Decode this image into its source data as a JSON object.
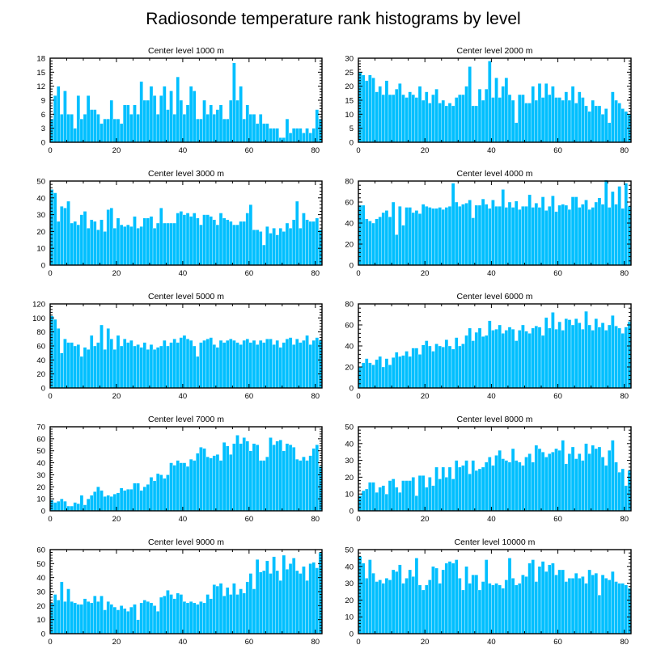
{
  "chart_data": {
    "title": "Radiosonde temperature rank histograms by level",
    "type": "bar",
    "bar_color": "#00BFFF",
    "panels": [
      {
        "title": "Center level 1000 m",
        "xlim": [
          0,
          82
        ],
        "ylim": [
          0,
          18
        ],
        "xticks": [
          0,
          20,
          40,
          60,
          80
        ],
        "yticks": [
          0,
          3,
          6,
          9,
          12,
          15,
          18
        ],
        "values": [
          5,
          10,
          12,
          6,
          11,
          6,
          6,
          3,
          10,
          5,
          6,
          10,
          7,
          7,
          6,
          4,
          5,
          5,
          9,
          5,
          5,
          4,
          8,
          8,
          6,
          8,
          6,
          13,
          9,
          9,
          12,
          10,
          6,
          10,
          12,
          7,
          11,
          6,
          14,
          9,
          6,
          8,
          12,
          11,
          5,
          5,
          9,
          6,
          8,
          6,
          7,
          8,
          5,
          5,
          9,
          17,
          9,
          12,
          5,
          8,
          6,
          6,
          4,
          6,
          4,
          4,
          3,
          3,
          3,
          1,
          1,
          5,
          2,
          3,
          3,
          3,
          2,
          3,
          2,
          3,
          7,
          5
        ]
      },
      {
        "title": "Center level 2000 m",
        "xlim": [
          0,
          82
        ],
        "ylim": [
          0,
          30
        ],
        "xticks": [
          0,
          20,
          40,
          60,
          80
        ],
        "yticks": [
          0,
          5,
          10,
          15,
          20,
          25,
          30
        ],
        "values": [
          25,
          24,
          22,
          24,
          23,
          18,
          20,
          17,
          22,
          17,
          17,
          19,
          21,
          17,
          16,
          18,
          17,
          16,
          20,
          15,
          18,
          14,
          17,
          19,
          14,
          15,
          13,
          14,
          13,
          16,
          17,
          17,
          20,
          27,
          13,
          13,
          19,
          15,
          19,
          29,
          16,
          23,
          16,
          20,
          23,
          17,
          15,
          7,
          17,
          17,
          14,
          14,
          20,
          15,
          21,
          16,
          21,
          17,
          20,
          16,
          16,
          15,
          18,
          15,
          20,
          14,
          18,
          16,
          13,
          11,
          15,
          13,
          13,
          10,
          12,
          7,
          18,
          15,
          14,
          12,
          11,
          10
        ]
      },
      {
        "title": "Center level 3000 m",
        "xlim": [
          0,
          82
        ],
        "ylim": [
          0,
          50
        ],
        "xticks": [
          0,
          20,
          40,
          60,
          80
        ],
        "yticks": [
          0,
          10,
          20,
          30,
          40,
          50
        ],
        "values": [
          45,
          43,
          26,
          35,
          34,
          38,
          25,
          26,
          24,
          30,
          32,
          22,
          27,
          26,
          21,
          27,
          20,
          33,
          34,
          22,
          28,
          24,
          23,
          24,
          23,
          29,
          22,
          23,
          28,
          28,
          29,
          22,
          25,
          34,
          25,
          25,
          25,
          25,
          31,
          32,
          30,
          31,
          29,
          31,
          28,
          24,
          30,
          30,
          29,
          27,
          24,
          31,
          28,
          27,
          26,
          24,
          24,
          26,
          26,
          31,
          36,
          21,
          21,
          20,
          12,
          23,
          19,
          22,
          18,
          22,
          20,
          25,
          22,
          27,
          38,
          22,
          31,
          27,
          26,
          26,
          28,
          21
        ]
      },
      {
        "title": "Center level 4000 m",
        "xlim": [
          0,
          82
        ],
        "ylim": [
          0,
          80
        ],
        "xticks": [
          0,
          20,
          40,
          60,
          80
        ],
        "yticks": [
          0,
          20,
          40,
          60,
          80
        ],
        "values": [
          57,
          57,
          44,
          42,
          40,
          44,
          46,
          50,
          52,
          46,
          60,
          29,
          56,
          38,
          55,
          55,
          50,
          52,
          49,
          58,
          56,
          55,
          54,
          54,
          55,
          53,
          55,
          56,
          78,
          60,
          56,
          58,
          59,
          62,
          45,
          57,
          57,
          63,
          58,
          54,
          62,
          56,
          56,
          72,
          55,
          60,
          55,
          61,
          53,
          56,
          56,
          67,
          55,
          59,
          55,
          65,
          52,
          56,
          66,
          51,
          57,
          58,
          57,
          53,
          65,
          65,
          55,
          58,
          62,
          53,
          55,
          60,
          64,
          58,
          81,
          55,
          70,
          58,
          75,
          54,
          78,
          56
        ]
      },
      {
        "title": "Center level 5000 m",
        "xlim": [
          0,
          82
        ],
        "ylim": [
          0,
          120
        ],
        "xticks": [
          0,
          20,
          40,
          60,
          80
        ],
        "yticks": [
          0,
          20,
          40,
          60,
          80,
          100,
          120
        ],
        "values": [
          103,
          98,
          85,
          50,
          70,
          65,
          65,
          60,
          62,
          45,
          58,
          55,
          75,
          60,
          65,
          90,
          55,
          85,
          70,
          55,
          75,
          60,
          70,
          65,
          68,
          60,
          62,
          58,
          65,
          55,
          62,
          55,
          58,
          60,
          68,
          60,
          65,
          70,
          65,
          72,
          75,
          70,
          68,
          60,
          45,
          65,
          68,
          70,
          72,
          62,
          58,
          68,
          65,
          68,
          70,
          68,
          65,
          62,
          68,
          70,
          65,
          68,
          62,
          68,
          65,
          70,
          70,
          62,
          68,
          58,
          65,
          70,
          72,
          62,
          70,
          65,
          68,
          75,
          62,
          68,
          72,
          68
        ]
      },
      {
        "title": "Center level 6000 m",
        "xlim": [
          0,
          82
        ],
        "ylim": [
          0,
          80
        ],
        "xticks": [
          0,
          20,
          40,
          60,
          80
        ],
        "yticks": [
          0,
          20,
          40,
          60,
          80
        ],
        "values": [
          20,
          24,
          28,
          24,
          22,
          27,
          30,
          20,
          28,
          22,
          29,
          34,
          30,
          31,
          35,
          30,
          38,
          38,
          32,
          41,
          45,
          40,
          35,
          42,
          40,
          39,
          46,
          40,
          37,
          48,
          40,
          42,
          50,
          57,
          45,
          53,
          57,
          49,
          50,
          64,
          55,
          56,
          60,
          52,
          55,
          58,
          56,
          45,
          55,
          60,
          54,
          52,
          57,
          59,
          58,
          50,
          67,
          57,
          72,
          56,
          63,
          55,
          66,
          65,
          60,
          66,
          62,
          56,
          73,
          60,
          55,
          66,
          58,
          62,
          55,
          60,
          69,
          59,
          57,
          52,
          58,
          63
        ]
      },
      {
        "title": "Center level 7000 m",
        "xlim": [
          0,
          82
        ],
        "ylim": [
          0,
          70
        ],
        "xticks": [
          0,
          20,
          40,
          60,
          80
        ],
        "yticks": [
          0,
          10,
          20,
          30,
          40,
          50,
          60,
          70
        ],
        "values": [
          9,
          7,
          8,
          10,
          8,
          4,
          4,
          7,
          6,
          13,
          5,
          10,
          13,
          16,
          20,
          17,
          12,
          13,
          12,
          14,
          15,
          19,
          17,
          18,
          18,
          23,
          23,
          17,
          20,
          22,
          28,
          25,
          31,
          30,
          27,
          30,
          40,
          38,
          42,
          40,
          40,
          37,
          43,
          42,
          48,
          53,
          52,
          45,
          44,
          46,
          47,
          42,
          57,
          54,
          47,
          56,
          63,
          56,
          61,
          58,
          50,
          56,
          55,
          42,
          42,
          45,
          61,
          55,
          58,
          59,
          50,
          56,
          55,
          53,
          43,
          42,
          45,
          42,
          46,
          52,
          55,
          37
        ]
      },
      {
        "title": "Center level 8000 m",
        "xlim": [
          0,
          82
        ],
        "ylim": [
          0,
          50
        ],
        "xticks": [
          0,
          20,
          40,
          60,
          80
        ],
        "yticks": [
          0,
          10,
          20,
          30,
          40,
          50
        ],
        "values": [
          9,
          12,
          13,
          17,
          17,
          11,
          14,
          15,
          10,
          18,
          19,
          14,
          11,
          18,
          18,
          18,
          20,
          9,
          21,
          21,
          14,
          20,
          15,
          26,
          19,
          26,
          20,
          26,
          19,
          30,
          26,
          27,
          30,
          22,
          30,
          24,
          25,
          26,
          29,
          32,
          27,
          33,
          36,
          31,
          30,
          29,
          37,
          30,
          29,
          27,
          32,
          34,
          29,
          39,
          37,
          35,
          32,
          34,
          35,
          37,
          36,
          42,
          28,
          34,
          38,
          31,
          34,
          30,
          40,
          34,
          39,
          37,
          38,
          32,
          27,
          36,
          42,
          29,
          23,
          25,
          15,
          24
        ]
      },
      {
        "title": "Center level 9000 m",
        "xlim": [
          0,
          82
        ],
        "ylim": [
          0,
          60
        ],
        "xticks": [
          0,
          20,
          40,
          60,
          80
        ],
        "yticks": [
          0,
          10,
          20,
          30,
          40,
          50,
          60
        ],
        "values": [
          22,
          28,
          24,
          37,
          23,
          32,
          23,
          22,
          21,
          21,
          25,
          23,
          22,
          27,
          23,
          27,
          17,
          23,
          21,
          19,
          17,
          20,
          18,
          16,
          19,
          21,
          10,
          22,
          24,
          23,
          22,
          20,
          16,
          26,
          27,
          31,
          28,
          25,
          29,
          28,
          23,
          22,
          23,
          22,
          21,
          23,
          22,
          28,
          25,
          35,
          34,
          36,
          27,
          33,
          28,
          36,
          28,
          32,
          29,
          37,
          43,
          32,
          53,
          44,
          45,
          52,
          43,
          55,
          45,
          38,
          56,
          46,
          50,
          54,
          45,
          43,
          48,
          38,
          50,
          51,
          47,
          58
        ]
      },
      {
        "title": "Center level 10000 m",
        "xlim": [
          0,
          82
        ],
        "ylim": [
          0,
          50
        ],
        "xticks": [
          0,
          20,
          40,
          60,
          80
        ],
        "yticks": [
          0,
          10,
          20,
          30,
          40,
          50
        ],
        "values": [
          46,
          42,
          33,
          44,
          36,
          31,
          32,
          30,
          33,
          32,
          38,
          37,
          41,
          30,
          33,
          38,
          34,
          45,
          29,
          26,
          29,
          32,
          40,
          39,
          30,
          38,
          42,
          43,
          42,
          44,
          33,
          26,
          40,
          30,
          35,
          35,
          26,
          31,
          44,
          30,
          29,
          30,
          29,
          27,
          32,
          45,
          33,
          29,
          30,
          35,
          34,
          42,
          44,
          31,
          40,
          43,
          37,
          41,
          42,
          35,
          38,
          38,
          31,
          33,
          33,
          36,
          33,
          34,
          30,
          38,
          35,
          36,
          23,
          35,
          33,
          32,
          37,
          31,
          30,
          30,
          29,
          27
        ]
      }
    ]
  }
}
